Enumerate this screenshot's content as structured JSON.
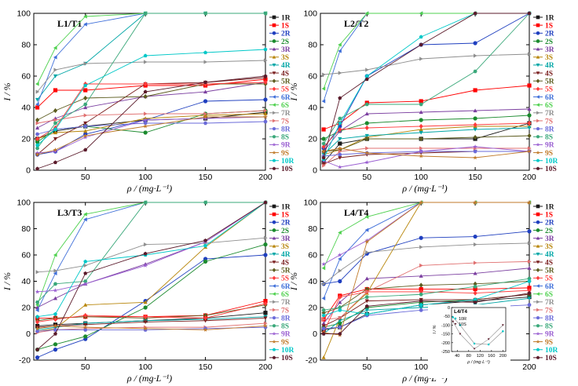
{
  "chart_data": {
    "type": "line",
    "x": [
      10,
      25,
      50,
      100,
      150,
      200
    ],
    "xlabel": "ρ / (mg·L⁻¹)",
    "ylabel": "I / %",
    "xticks": [
      "50",
      "100",
      "150",
      "200"
    ],
    "xlim": [
      7,
      200
    ],
    "legend_position": "right",
    "series_names": [
      "1R",
      "1S",
      "2R",
      "2S",
      "3R",
      "3S",
      "4R",
      "4S",
      "5R",
      "5S",
      "6R",
      "6S",
      "7R",
      "7S",
      "8R",
      "8S",
      "9R",
      "9S",
      "10R",
      "10S"
    ],
    "series_colors": [
      "#1a1a1a",
      "#ff0000",
      "#1f3fbf",
      "#1b8a2e",
      "#7b3fa0",
      "#b8860b",
      "#00a6a6",
      "#7a1f1f",
      "#5c5c1f",
      "#ff3b3b",
      "#3f6fd9",
      "#4fd14f",
      "#8f8f8f",
      "#e07070",
      "#6a6ad9",
      "#3aa87a",
      "#9a5fd1",
      "#c07a2a",
      "#00c8c8",
      "#5a1a2a"
    ],
    "panels": [
      {
        "title": "L1/T1",
        "ylim": [
          0,
          100
        ],
        "yticks": [
          "0",
          "20",
          "40",
          "60",
          "80",
          "100"
        ],
        "series": [
          {
            "name": "1R",
            "values": [
              20,
              25,
              28,
              32,
              33,
              37
            ]
          },
          {
            "name": "1S",
            "values": [
              40,
              51,
              51,
              54,
              54,
              58
            ]
          },
          {
            "name": "2R",
            "values": [
              10,
              12,
              23,
              32,
              44,
              45
            ]
          },
          {
            "name": "2S",
            "values": [
              18,
              26,
              28,
              24,
              36,
              38
            ]
          },
          {
            "name": "3R",
            "values": [
              27,
              33,
              40,
              47,
              50,
              56
            ]
          },
          {
            "name": "3S",
            "values": [
              20,
              24,
              25,
              33,
              35,
              36
            ]
          },
          {
            "name": "4R",
            "values": [
              45,
              60,
              68,
              100,
              100,
              100
            ]
          },
          {
            "name": "4S",
            "values": [
              10,
              20,
              30,
              55,
              56,
              59
            ]
          },
          {
            "name": "5R",
            "values": [
              32,
              38,
              46,
              47,
              55,
              55
            ]
          },
          {
            "name": "5S",
            "values": [
              20,
              27,
              55,
              55,
              55,
              56
            ]
          },
          {
            "name": "6R",
            "values": [
              42,
              72,
              93,
              100,
              100,
              100
            ]
          },
          {
            "name": "6S",
            "values": [
              55,
              78,
              98,
              100,
              100,
              100
            ]
          },
          {
            "name": "7R",
            "values": [
              50,
              64,
              68,
              69,
              69,
              70
            ]
          },
          {
            "name": "7S",
            "values": [
              30,
              32,
              35,
              36,
              36,
              38
            ]
          },
          {
            "name": "8R",
            "values": [
              23,
              26,
              28,
              30,
              30,
              31
            ]
          },
          {
            "name": "8S",
            "values": [
              14,
              30,
              42,
              100,
              100,
              100
            ]
          },
          {
            "name": "9R",
            "values": [
              11,
              12,
              21,
              32,
              33,
              34
            ]
          },
          {
            "name": "9S",
            "values": [
              10,
              13,
              22,
              28,
              34,
              34
            ]
          },
          {
            "name": "10R",
            "values": [
              16,
              26,
              54,
              73,
              75,
              77
            ]
          },
          {
            "name": "10S",
            "values": [
              1,
              5,
              13,
              50,
              56,
              60
            ]
          }
        ]
      },
      {
        "title": "L2/T2",
        "ylim": [
          0,
          100
        ],
        "yticks": [
          "0",
          "20",
          "40",
          "60",
          "80",
          "100"
        ],
        "series": [
          {
            "name": "1R",
            "values": [
              5,
              17,
              20,
              20,
              20,
              30
            ]
          },
          {
            "name": "1S",
            "values": [
              26,
              30,
              43,
              44,
              51,
              54
            ]
          },
          {
            "name": "2R",
            "values": [
              14,
              28,
              60,
              80,
              81,
              100
            ]
          },
          {
            "name": "2S",
            "values": [
              20,
              25,
              30,
              32,
              33,
              35
            ]
          },
          {
            "name": "3R",
            "values": [
              12,
              25,
              36,
              37,
              38,
              39
            ]
          },
          {
            "name": "3S",
            "values": [
              10,
              13,
              21,
              26,
              28,
              28
            ]
          },
          {
            "name": "4R",
            "values": [
              10,
              20,
              22,
              24,
              26,
              27
            ]
          },
          {
            "name": "4S",
            "values": [
              4,
              8,
              10,
              11,
              12,
              12
            ]
          },
          {
            "name": "5R",
            "values": [
              12,
              13,
              20,
              20,
              21,
              22
            ]
          },
          {
            "name": "5S",
            "values": [
              15,
              26,
              27,
              28,
              29,
              30
            ]
          },
          {
            "name": "6R",
            "values": [
              44,
              76,
              100,
              100,
              100,
              100
            ]
          },
          {
            "name": "6S",
            "values": [
              52,
              80,
              100,
              100,
              100,
              100
            ]
          },
          {
            "name": "7R",
            "values": [
              61,
              62,
              64,
              71,
              73,
              74
            ]
          },
          {
            "name": "7S",
            "values": [
              3,
              12,
              14,
              14,
              14,
              14
            ]
          },
          {
            "name": "8R",
            "values": [
              9,
              10,
              11,
              12,
              12,
              12
            ]
          },
          {
            "name": "8S",
            "values": [
              17,
              33,
              42,
              42,
              63,
              100
            ]
          },
          {
            "name": "9R",
            "values": [
              6,
              2,
              5,
              12,
              15,
              12
            ]
          },
          {
            "name": "9S",
            "values": [
              12,
              14,
              11,
              9,
              8,
              12
            ]
          },
          {
            "name": "10R",
            "values": [
              7,
              30,
              60,
              85,
              100,
              100
            ]
          },
          {
            "name": "10S",
            "values": [
              8,
              46,
              58,
              80,
              100,
              100
            ]
          }
        ]
      },
      {
        "title": "L3/T3",
        "ylim": [
          -20,
          100
        ],
        "yticks": [
          "-20",
          "0",
          "20",
          "40",
          "60",
          "80",
          "100"
        ],
        "series": [
          {
            "name": "1R",
            "values": [
              6,
              7,
              8,
              10,
              12,
              16
            ]
          },
          {
            "name": "1S",
            "values": [
              12,
              12,
              13,
              13,
              14,
              25
            ]
          },
          {
            "name": "2R",
            "values": [
              -18,
              -12,
              -4,
              25,
              57,
              60
            ]
          },
          {
            "name": "2S",
            "values": [
              -12,
              -8,
              -2,
              20,
              55,
              68
            ]
          },
          {
            "name": "3R",
            "values": [
              20,
              27,
              38,
              53,
              70,
              100
            ]
          },
          {
            "name": "3S",
            "values": [
              2,
              4,
              22,
              24,
              66,
              100
            ]
          },
          {
            "name": "4R",
            "values": [
              3,
              5,
              8,
              10,
              11,
              13
            ]
          },
          {
            "name": "4S",
            "values": [
              5,
              6,
              7,
              9,
              10,
              12
            ]
          },
          {
            "name": "5R",
            "values": [
              10,
              12,
              13,
              12,
              14,
              22
            ]
          },
          {
            "name": "5S",
            "values": [
              9,
              11,
              14,
              13,
              12,
              23
            ]
          },
          {
            "name": "6R",
            "values": [
              18,
              46,
              87,
              100,
              100,
              100
            ]
          },
          {
            "name": "6S",
            "values": [
              22,
              60,
              91,
              100,
              100,
              100
            ]
          },
          {
            "name": "7R",
            "values": [
              47,
              48,
              52,
              68,
              69,
              73
            ]
          },
          {
            "name": "7S",
            "values": [
              1,
              3,
              4,
              5,
              5,
              8
            ]
          },
          {
            "name": "8R",
            "values": [
              2,
              3,
              3,
              3,
              4,
              5
            ]
          },
          {
            "name": "8S",
            "values": [
              24,
              38,
              40,
              100,
              100,
              100
            ]
          },
          {
            "name": "9R",
            "values": [
              32,
              33,
              38,
              52,
              70,
              100
            ]
          },
          {
            "name": "9S",
            "values": [
              4,
              6,
              5,
              4,
              3,
              6
            ]
          },
          {
            "name": "10R",
            "values": [
              13,
              15,
              55,
              60,
              67,
              100
            ]
          },
          {
            "name": "10S",
            "values": [
              -12,
              0,
              46,
              61,
              71,
              100
            ]
          }
        ]
      },
      {
        "title": "L4/T4",
        "ylim": [
          -20,
          100
        ],
        "yticks": [
          "-20",
          "0",
          "20",
          "40",
          "60",
          "80",
          "100"
        ],
        "series": [
          {
            "name": "1R",
            "values": [
              3,
              5,
              15,
              22,
              25,
              28
            ]
          },
          {
            "name": "1S",
            "values": [
              11,
              29,
              34,
              34,
              34,
              35
            ]
          },
          {
            "name": "2R",
            "values": [
              38,
              40,
              61,
              73,
              74,
              78
            ]
          },
          {
            "name": "2S",
            "values": [
              5,
              8,
              20,
              24,
              26,
              30
            ]
          },
          {
            "name": "3R",
            "values": [
              8,
              24,
              42,
              44,
              46,
              50
            ]
          },
          {
            "name": "3S",
            "values": [
              -18,
              12,
              31,
              100,
              100,
              100
            ]
          },
          {
            "name": "4R",
            "values": [
              0,
              10,
              18,
              20,
              22,
              27
            ]
          },
          {
            "name": "4S",
            "values": [
              6,
              12,
              25,
              26,
              26,
              30
            ]
          },
          {
            "name": "5R",
            "values": [
              16,
              20,
              34,
              37,
              38,
              40
            ]
          },
          {
            "name": "5S",
            "values": [
              1,
              28,
              32,
              32,
              31,
              33
            ]
          },
          {
            "name": "6R",
            "values": [
              27,
              57,
              79,
              100,
              100,
              100
            ]
          },
          {
            "name": "6S",
            "values": [
              50,
              77,
              89,
              100,
              100,
              100
            ]
          },
          {
            "name": "7R",
            "values": [
              38,
              48,
              62,
              66,
              68,
              69
            ]
          },
          {
            "name": "7S",
            "values": [
              11,
              12,
              32,
              52,
              54,
              55
            ]
          },
          {
            "name": "8R",
            "values": [
              4,
              5,
              14,
              18,
              20,
              22
            ]
          },
          {
            "name": "8S",
            "values": [
              18,
              20,
              28,
              30,
              36,
              42
            ]
          },
          {
            "name": "9R",
            "values": [
              53,
              60,
              71,
              100,
              100,
              100
            ]
          },
          {
            "name": "9S",
            "values": [
              1,
              -1,
              70,
              100,
              100,
              100
            ]
          },
          {
            "name": "10R",
            "values": [
              14,
              18,
              15,
              22,
              26,
              40
            ]
          },
          {
            "name": "10S",
            "values": [
              0,
              0,
              21,
              25,
              24,
              31
            ]
          }
        ]
      }
    ],
    "inset": {
      "panel": "L4/T4",
      "title": "L4/T4",
      "xlabel": "ρ / (mg·L⁻¹)",
      "ylabel": "I / %",
      "x": [
        10,
        25,
        50,
        100,
        150,
        200
      ],
      "xticks": [
        "40",
        "80",
        "120",
        "160",
        "200"
      ],
      "yticks": [
        "-250",
        "-200",
        "-150",
        "-100",
        "-50",
        "0"
      ],
      "ylim": [
        -250,
        0
      ],
      "series": [
        {
          "name": "10R",
          "values": [
            -30,
            -55,
            -100,
            -205,
            -210,
            -135
          ]
        },
        {
          "name": "10S",
          "values": [
            -40,
            -80,
            -150,
            -235,
            -180,
            -100
          ]
        }
      ]
    }
  }
}
